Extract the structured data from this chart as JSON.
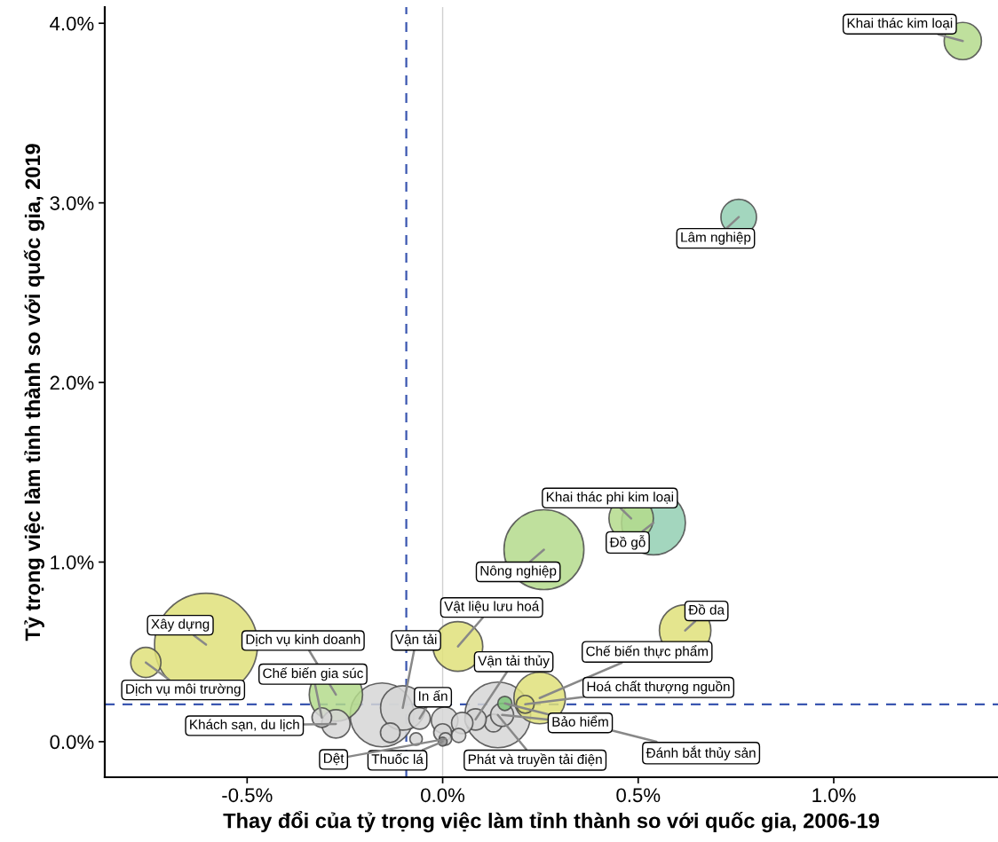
{
  "chart_data": {
    "type": "bubble",
    "xlabel": "Thay đổi của tỷ trọng việc làm tỉnh thành so với quốc gia, 2006-19",
    "ylabel": "Tỷ trọng việc làm tỉnh thành so với quốc gia, 2019",
    "xlim": [
      -0.864,
      1.42
    ],
    "ylim": [
      -0.198,
      4.09
    ],
    "xticks": [
      {
        "value": -0.5,
        "label": "-0.5%"
      },
      {
        "value": 0,
        "label": "0.0%"
      },
      {
        "value": 0.5,
        "label": "0.5%"
      },
      {
        "value": 1,
        "label": "1.0%"
      }
    ],
    "yticks": [
      {
        "value": 0,
        "label": "0.0%"
      },
      {
        "value": 1,
        "label": "1.0%"
      },
      {
        "value": 2,
        "label": "2.0%"
      },
      {
        "value": 3,
        "label": "3.0%"
      },
      {
        "value": 4,
        "label": "4.0%"
      }
    ],
    "grid": false,
    "legend": false,
    "marker": "circle",
    "ref_lines": [
      {
        "axis": "x",
        "value": 0,
        "color": "#d0d0d0",
        "line_style": "solid"
      },
      {
        "axis": "x",
        "value": -0.093,
        "color": "#3a56b0",
        "line_style": "dashed"
      },
      {
        "axis": "y",
        "value": 0.208,
        "color": "#3a56b0",
        "line_style": "dashed"
      }
    ],
    "series": [
      {
        "x": [
          -0.605,
          0.259,
          -0.155,
          0.141,
          0.539,
          -0.273,
          0.62,
          0.482,
          0.039,
          0.248,
          -0.102,
          0.13,
          -0.759,
          -0.273,
          0.005,
          0.152,
          0.084,
          -0.059,
          0.05,
          -0.309,
          -0.134,
          0.211,
          0.0,
          0.159,
          0.041,
          -0.068,
          0.007,
          0.0,
          1.33,
          0.757
        ],
        "values": [
          0.54,
          1.069,
          0.149,
          0.149,
          1.218,
          0.262,
          0.619,
          1.243,
          0.53,
          0.243,
          0.188,
          0.104,
          0.441,
          0.099,
          0.119,
          0.149,
          0.124,
          0.129,
          0.104,
          0.134,
          0.05,
          0.208,
          0.05,
          0.213,
          0.035,
          0.015,
          0.015,
          0.0,
          3.901,
          2.921
        ],
        "sizes": [
          1,
          0.602,
          0.385,
          0.407,
          0.385,
          0.268,
          0.25,
          0.186,
          0.233,
          0.25,
          0.186,
          0.03,
          0.086,
          0.076,
          0.067,
          0.05,
          0.043,
          0.043,
          0.043,
          0.036,
          0.036,
          0.03,
          0.03,
          0.019,
          0.019,
          0.0146,
          0.0146,
          0.0074,
          0.131,
          0.119
        ],
        "colors": [
          "#dfe07a",
          "#b4db8c",
          "#d6d6d6",
          "#d6d6d6",
          "#93cfb3",
          "#b4db8c",
          "#dfe07a",
          "#b4db8c",
          "#dfe07a",
          "#dfe07a",
          "#d6d6d6",
          "#d6d6d6",
          "#dfe07a",
          "#d6d6d6",
          "#d6d6d6",
          "#d6d6d6",
          "#d6d6d6",
          "#d6d6d6",
          "#d6d6d6",
          "#d6d6d6",
          "#d6d6d6",
          "#dfe07a",
          "#d6d6d6",
          "#7cc679",
          "#d6d6d6",
          "#d6d6d6",
          "#d6d6d6",
          "#9a9a9a",
          "#b4db8c",
          "#93cfb3"
        ]
      }
    ],
    "annotations": [
      {
        "text": "Khai thác kim loại",
        "x": 1.33,
        "y": 3.901
      },
      {
        "text": "Lâm nghiệp",
        "x": 0.757,
        "y": 2.921
      },
      {
        "text": "Khai thác phi kim loại",
        "x": 0.482,
        "y": 1.243
      },
      {
        "text": "Đồ gỗ",
        "x": 0.539,
        "y": 1.218
      },
      {
        "text": "Nông nghiệp",
        "x": 0.259,
        "y": 1.069
      },
      {
        "text": "Đồ da",
        "x": 0.62,
        "y": 0.619
      },
      {
        "text": "Xây dựng",
        "x": -0.605,
        "y": 0.54
      },
      {
        "text": "Dịch vụ môi trường",
        "x": -0.759,
        "y": 0.441
      },
      {
        "text": "Dịch vụ kinh doanh",
        "x": -0.273,
        "y": 0.262
      },
      {
        "text": "Vật liệu lưu hoá",
        "x": 0.039,
        "y": 0.53
      },
      {
        "text": "Chế biến thực phẩm",
        "x": 0.248,
        "y": 0.243
      },
      {
        "text": "Hoá chất thượng nguồn",
        "x": 0.211,
        "y": 0.208
      },
      {
        "text": "Đánh bắt thủy sản",
        "x": 0.159,
        "y": 0.213
      },
      {
        "text": "Bảo hiểm",
        "x": 0.152,
        "y": 0.149
      },
      {
        "text": "Phát và truyền tải điện",
        "x": 0.141,
        "y": 0.149
      },
      {
        "text": "Vận tải thủy",
        "x": 0.084,
        "y": 0.124
      },
      {
        "text": "Vận tải",
        "x": -0.102,
        "y": 0.188
      },
      {
        "text": "In ấn",
        "x": -0.059,
        "y": 0.129
      },
      {
        "text": "Chế biến gia súc",
        "x": -0.309,
        "y": 0.134
      },
      {
        "text": "Khách sạn, du lịch",
        "x": -0.273,
        "y": 0.099
      },
      {
        "text": "Thuốc lá",
        "x": 0.0,
        "y": 0.0
      },
      {
        "text": "Dệt",
        "x": 0.007,
        "y": 0.015
      }
    ]
  }
}
